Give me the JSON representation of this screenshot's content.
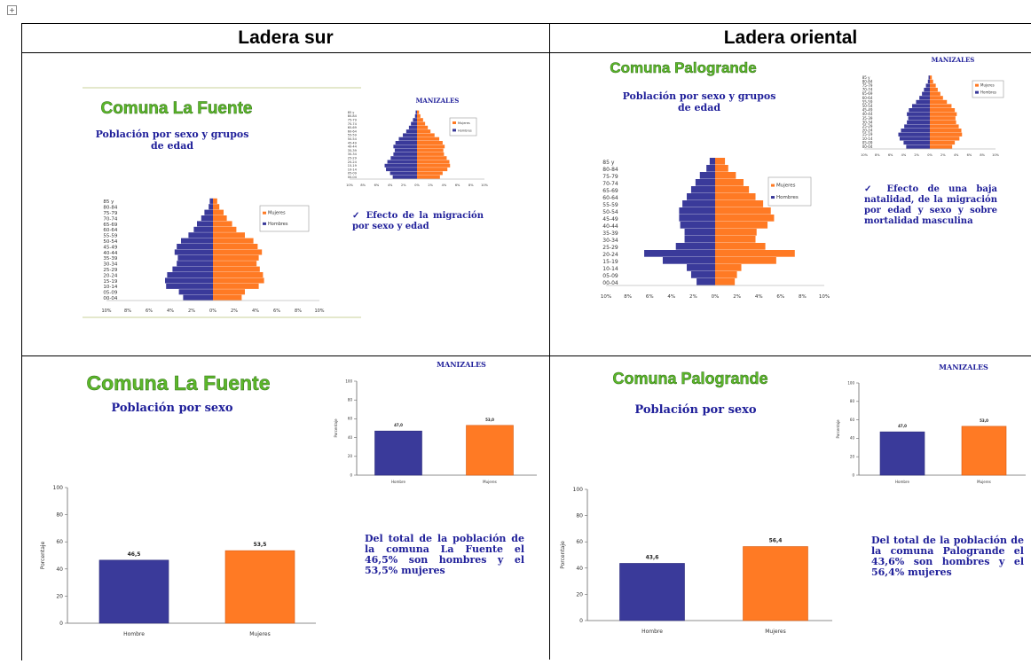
{
  "headers": {
    "left": "Ladera sur",
    "right": "Ladera oriental"
  },
  "colors": {
    "hombres": "#3a3a9a",
    "mujeres": "#ff7a24",
    "title_green": "#5cb82a",
    "subtitle_blue": "#20209a"
  },
  "age_groups": [
    "00-04",
    "05-09",
    "10-14",
    "15-19",
    "20-24",
    "25-29",
    "30-34",
    "35-39",
    "40-44",
    "45-49",
    "50-54",
    "55-59",
    "60-64",
    "65-69",
    "70-74",
    "75-79",
    "80-84",
    "85 y"
  ],
  "pct_ticks": [
    "10%",
    "8%",
    "6%",
    "4%",
    "2%",
    "0%",
    "2%",
    "4%",
    "6%",
    "8%",
    "10%"
  ],
  "legend": {
    "mujeres": "Mujeres",
    "hombres": "Hombres"
  },
  "manizales_title": "MANIZALES",
  "pyramid_subtitle_lines": [
    "Población por sexo y grupos",
    "de edad"
  ],
  "sex_subtitle": "Población por sexo",
  "note_la_fuente_pyr": "Efecto de la migración por sexo y edad",
  "note_palogrande_pyr": "Efecto de una baja natalidad, de la migración por edad y sexo y sobre mortalidad masculina",
  "note_la_fuente_sex": "Del total de la población de la comuna La Fuente el 46,5% son hombres y el 53,5% mujeres",
  "note_palogrande_sex": "Del total de la población de la comuna Palogrande el 43,6% son hombres y el 56,4% mujeres",
  "chart_data": [
    {
      "id": "pyr_la_fuente",
      "type": "bar",
      "orientation": "horizontal-pyramid",
      "title": "Comuna La Fuente",
      "subtitle": "Población por sexo y grupos de edad",
      "categories": [
        "00-04",
        "05-09",
        "10-14",
        "15-19",
        "20-24",
        "25-29",
        "30-34",
        "35-39",
        "40-44",
        "45-49",
        "50-54",
        "55-59",
        "60-64",
        "65-69",
        "70-74",
        "75-79",
        "80-84",
        "85 y"
      ],
      "xlim": [
        -10,
        10
      ],
      "series": [
        {
          "name": "Hombres",
          "values": [
            2.8,
            3.2,
            4.4,
            4.5,
            4.3,
            3.8,
            3.4,
            3.3,
            3.6,
            3.4,
            3.0,
            2.3,
            1.8,
            1.5,
            1.1,
            0.8,
            0.4,
            0.3
          ]
        },
        {
          "name": "Mujeres",
          "values": [
            2.7,
            3.0,
            4.3,
            4.8,
            4.7,
            4.4,
            4.1,
            4.3,
            4.6,
            4.2,
            3.8,
            3.0,
            2.2,
            1.8,
            1.3,
            1.0,
            0.6,
            0.4
          ]
        }
      ]
    },
    {
      "id": "pyr_manizales_1",
      "type": "bar",
      "orientation": "horizontal-pyramid",
      "title": "MANIZALES",
      "categories": [
        "00-04",
        "05-09",
        "10-14",
        "15-19",
        "20-24",
        "25-29",
        "30-34",
        "35-39",
        "40-44",
        "45-49",
        "50-54",
        "55-59",
        "60-64",
        "65-69",
        "70-74",
        "75-79",
        "80-84",
        "85 y"
      ],
      "xlim": [
        -10,
        10
      ],
      "series": [
        {
          "name": "Hombres",
          "values": [
            3.6,
            4.0,
            4.6,
            4.8,
            4.4,
            3.9,
            3.5,
            3.3,
            3.5,
            3.2,
            2.7,
            2.1,
            1.6,
            1.2,
            0.9,
            0.6,
            0.3,
            0.2
          ]
        },
        {
          "name": "Mujeres",
          "values": [
            3.4,
            3.8,
            4.5,
            4.9,
            4.8,
            4.4,
            4.0,
            3.9,
            4.1,
            3.8,
            3.3,
            2.6,
            2.0,
            1.6,
            1.2,
            0.9,
            0.5,
            0.3
          ]
        }
      ]
    },
    {
      "id": "pyr_palogrande",
      "type": "bar",
      "orientation": "horizontal-pyramid",
      "title": "Comuna Palogrande",
      "subtitle": "Población por sexo y grupos de edad",
      "categories": [
        "00-04",
        "05-09",
        "10-14",
        "15-19",
        "20-24",
        "25-29",
        "30-34",
        "35-39",
        "40-44",
        "45-49",
        "50-54",
        "55-59",
        "60-64",
        "65-69",
        "70-74",
        "75-79",
        "80-84",
        "85 y"
      ],
      "xlim": [
        -10,
        10
      ],
      "series": [
        {
          "name": "Hombres",
          "values": [
            1.7,
            2.2,
            2.6,
            4.8,
            6.5,
            3.6,
            2.8,
            2.8,
            3.2,
            3.3,
            3.3,
            3.0,
            2.6,
            2.2,
            1.8,
            1.4,
            0.8,
            0.5
          ]
        },
        {
          "name": "Mujeres",
          "values": [
            1.8,
            2.0,
            2.4,
            5.6,
            7.3,
            4.6,
            3.7,
            3.8,
            4.8,
            5.4,
            5.1,
            4.4,
            3.7,
            3.1,
            2.6,
            1.9,
            1.2,
            0.9
          ]
        }
      ]
    },
    {
      "id": "pyr_manizales_2",
      "type": "bar",
      "orientation": "horizontal-pyramid",
      "title": "MANIZALES",
      "categories": [
        "00-04",
        "05-09",
        "10-14",
        "15-19",
        "20-24",
        "25-29",
        "30-34",
        "35-39",
        "40-44",
        "45-49",
        "50-54",
        "55-59",
        "60-64",
        "65-69",
        "70-74",
        "75-79",
        "80-84",
        "85 y"
      ],
      "xlim": [
        -10,
        10
      ],
      "series": [
        {
          "name": "Hombres",
          "values": [
            3.6,
            4.0,
            4.6,
            4.8,
            4.4,
            3.9,
            3.5,
            3.3,
            3.5,
            3.2,
            2.7,
            2.1,
            1.6,
            1.2,
            0.9,
            0.6,
            0.3,
            0.2
          ]
        },
        {
          "name": "Mujeres",
          "values": [
            3.4,
            3.8,
            4.5,
            4.9,
            4.8,
            4.4,
            4.0,
            3.9,
            4.1,
            3.8,
            3.3,
            2.6,
            2.0,
            1.6,
            1.2,
            0.9,
            0.5,
            0.3
          ]
        }
      ]
    },
    {
      "id": "sex_la_fuente",
      "type": "bar",
      "title": "Comuna La Fuente",
      "subtitle": "Población por sexo",
      "categories": [
        "Hombre",
        "Mujeres"
      ],
      "values": [
        46.5,
        53.5
      ],
      "labels": [
        "46,5",
        "53,5"
      ],
      "ylabel": "Porcentaje",
      "ylim": [
        0,
        100
      ],
      "yticks": [
        0,
        20,
        40,
        60,
        80,
        100
      ]
    },
    {
      "id": "sex_manizales_1",
      "type": "bar",
      "title": "MANIZALES",
      "categories": [
        "Hombre",
        "Mujeres"
      ],
      "values": [
        47.0,
        53.0
      ],
      "labels": [
        "47,0",
        "53,0"
      ],
      "ylabel": "Porcentaje",
      "ylim": [
        0,
        100
      ],
      "yticks": [
        0,
        20,
        40,
        60,
        80,
        100
      ]
    },
    {
      "id": "sex_palogrande",
      "type": "bar",
      "title": "Comuna Palogrande",
      "subtitle": "Población por sexo",
      "categories": [
        "Hombre",
        "Mujeres"
      ],
      "values": [
        43.6,
        56.4
      ],
      "labels": [
        "43,6",
        "56,4"
      ],
      "ylabel": "Porcentaje",
      "ylim": [
        0,
        100
      ],
      "yticks": [
        0,
        20,
        40,
        60,
        80,
        100
      ]
    },
    {
      "id": "sex_manizales_2",
      "type": "bar",
      "title": "MANIZALES",
      "categories": [
        "Hombre",
        "Mujeres"
      ],
      "values": [
        47.0,
        53.0
      ],
      "labels": [
        "47,0",
        "53,0"
      ],
      "ylabel": "Porcentaje",
      "ylim": [
        0,
        100
      ],
      "yticks": [
        0,
        20,
        40,
        60,
        80,
        100
      ]
    }
  ]
}
